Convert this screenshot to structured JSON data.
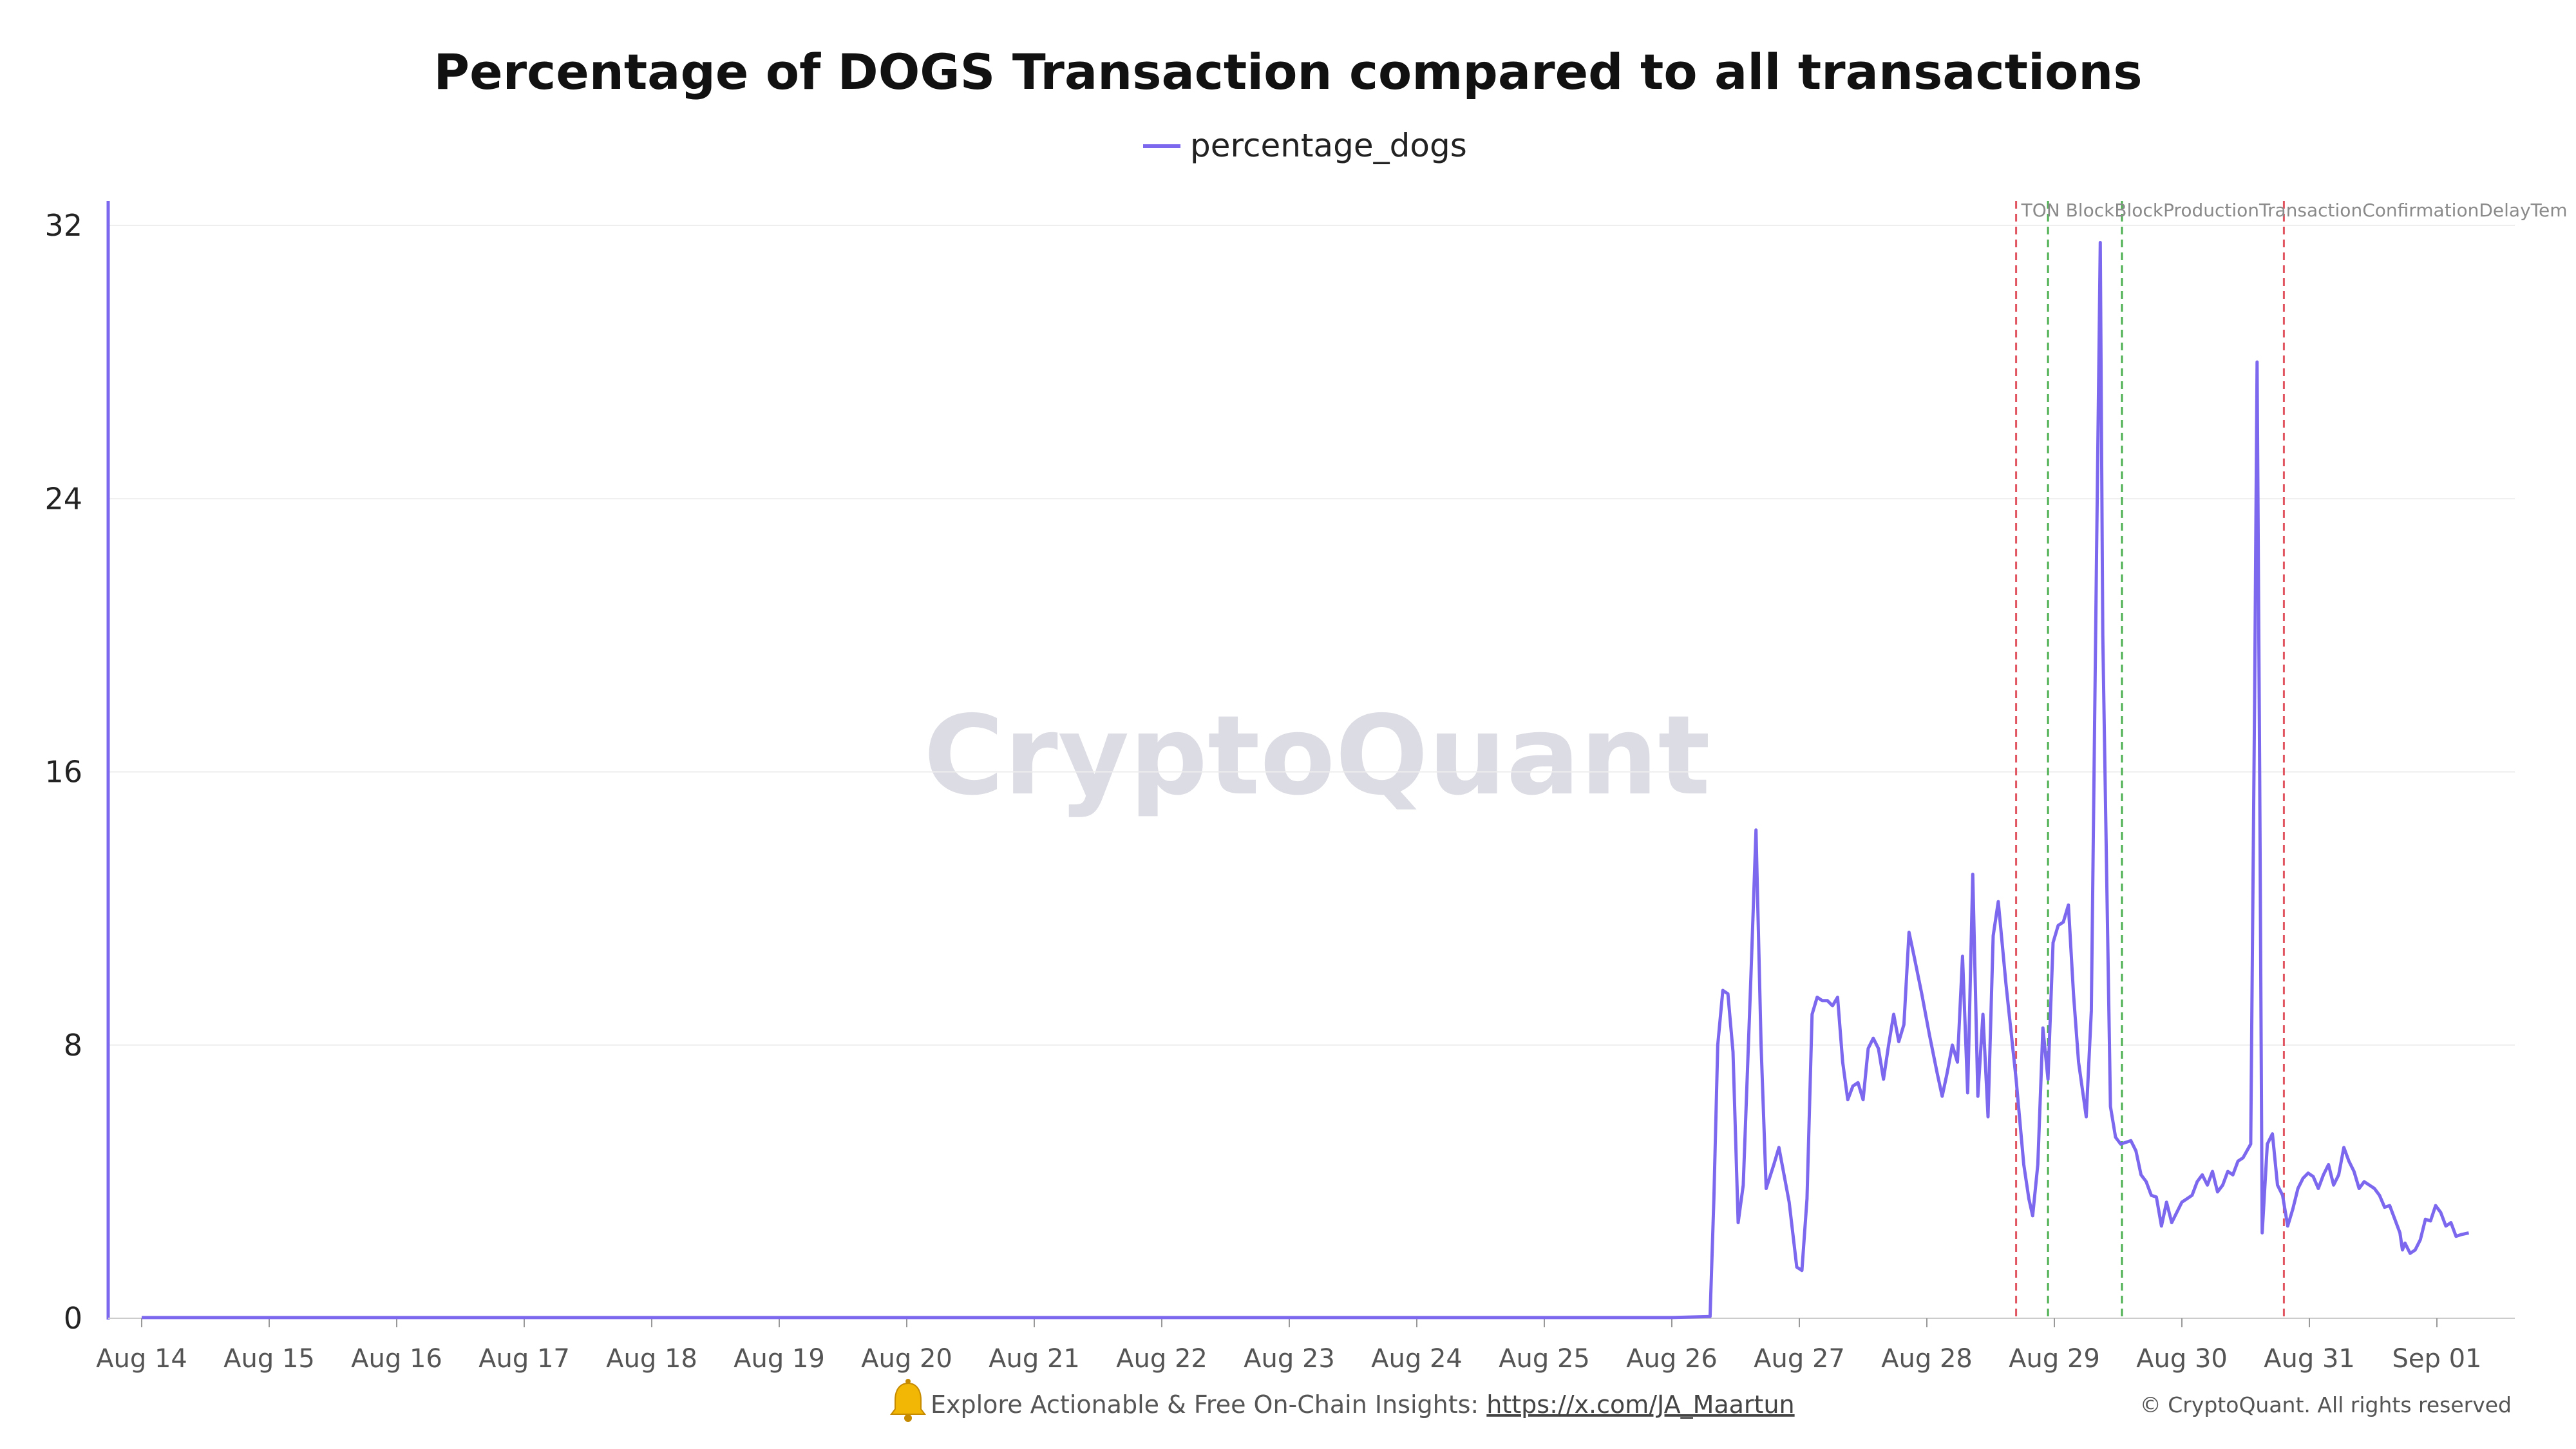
{
  "chart_data": {
    "type": "line",
    "title": "Percentage of DOGS Transaction compared to all transactions",
    "xlabel": "",
    "ylabel": "",
    "ylim": [
      0,
      32
    ],
    "yticks": [
      "0",
      "8",
      "16",
      "24",
      "32"
    ],
    "xticks": [
      "Aug 14",
      "Aug 15",
      "Aug 16",
      "Aug 17",
      "Aug 18",
      "Aug 19",
      "Aug 20",
      "Aug 21",
      "Aug 22",
      "Aug 23",
      "Aug 24",
      "Aug 25",
      "Aug 26",
      "Aug 27",
      "Aug 28",
      "Aug 29",
      "Aug 30",
      "Aug 31",
      "Sep 01"
    ],
    "xlim_days": [
      13.85,
      32.55
    ],
    "grid": true,
    "legend": "top-center",
    "colors": {
      "series": "#7b68ee",
      "event_red": "#e05560",
      "event_green": "#4caf50",
      "grid": "#eeeeee"
    },
    "series": [
      {
        "name": "percentage_dogs",
        "points": [
          [
            14.0,
            0.02
          ],
          [
            15.0,
            0.02
          ],
          [
            16.0,
            0.02
          ],
          [
            17.0,
            0.02
          ],
          [
            18.0,
            0.02
          ],
          [
            19.0,
            0.02
          ],
          [
            20.0,
            0.02
          ],
          [
            21.0,
            0.02
          ],
          [
            22.0,
            0.02
          ],
          [
            23.0,
            0.02
          ],
          [
            24.0,
            0.02
          ],
          [
            25.0,
            0.02
          ],
          [
            26.0,
            0.02
          ],
          [
            26.3,
            0.05
          ],
          [
            26.33,
            3.5
          ],
          [
            26.36,
            8.0
          ],
          [
            26.4,
            9.6
          ],
          [
            26.44,
            9.5
          ],
          [
            26.48,
            7.8
          ],
          [
            26.52,
            2.8
          ],
          [
            26.56,
            3.9
          ],
          [
            26.62,
            10.0
          ],
          [
            26.66,
            14.3
          ],
          [
            26.7,
            8.0
          ],
          [
            26.74,
            3.8
          ],
          [
            26.8,
            4.5
          ],
          [
            26.84,
            5.0
          ],
          [
            26.92,
            3.4
          ],
          [
            26.98,
            1.5
          ],
          [
            27.02,
            1.4
          ],
          [
            27.06,
            3.5
          ],
          [
            27.1,
            8.9
          ],
          [
            27.14,
            9.4
          ],
          [
            27.18,
            9.3
          ],
          [
            27.22,
            9.3
          ],
          [
            27.26,
            9.15
          ],
          [
            27.3,
            9.4
          ],
          [
            27.34,
            7.5
          ],
          [
            27.38,
            6.4
          ],
          [
            27.42,
            6.8
          ],
          [
            27.46,
            6.9
          ],
          [
            27.5,
            6.4
          ],
          [
            27.54,
            7.9
          ],
          [
            27.58,
            8.2
          ],
          [
            27.62,
            7.9
          ],
          [
            27.66,
            7.0
          ],
          [
            27.7,
            8.0
          ],
          [
            27.74,
            8.9
          ],
          [
            27.78,
            8.1
          ],
          [
            27.82,
            8.6
          ],
          [
            27.86,
            11.3
          ],
          [
            27.9,
            10.6
          ],
          [
            27.96,
            9.5
          ],
          [
            28.02,
            8.3
          ],
          [
            28.08,
            7.2
          ],
          [
            28.12,
            6.5
          ],
          [
            28.16,
            7.2
          ],
          [
            28.2,
            8.0
          ],
          [
            28.24,
            7.5
          ],
          [
            28.28,
            10.6
          ],
          [
            28.32,
            6.6
          ],
          [
            28.36,
            13.0
          ],
          [
            28.4,
            6.5
          ],
          [
            28.44,
            8.9
          ],
          [
            28.48,
            5.9
          ],
          [
            28.52,
            11.2
          ],
          [
            28.56,
            12.2
          ],
          [
            28.62,
            9.8
          ],
          [
            28.7,
            7.0
          ],
          [
            28.76,
            4.5
          ],
          [
            28.8,
            3.5
          ],
          [
            28.83,
            3.0
          ],
          [
            28.87,
            4.5
          ],
          [
            28.91,
            8.5
          ],
          [
            28.95,
            7.0
          ],
          [
            28.99,
            11.0
          ],
          [
            29.03,
            11.5
          ],
          [
            29.07,
            11.6
          ],
          [
            29.11,
            12.1
          ],
          [
            29.15,
            9.5
          ],
          [
            29.19,
            7.5
          ],
          [
            29.25,
            5.9
          ],
          [
            29.29,
            9.0
          ],
          [
            29.33,
            22.0
          ],
          [
            29.36,
            31.5
          ],
          [
            29.38,
            20.0
          ],
          [
            29.41,
            13.0
          ],
          [
            29.44,
            6.2
          ],
          [
            29.48,
            5.3
          ],
          [
            29.52,
            5.1
          ],
          [
            29.6,
            5.2
          ],
          [
            29.64,
            4.9
          ],
          [
            29.68,
            4.2
          ],
          [
            29.72,
            4.0
          ],
          [
            29.76,
            3.6
          ],
          [
            29.8,
            3.55
          ],
          [
            29.84,
            2.7
          ],
          [
            29.88,
            3.4
          ],
          [
            29.92,
            2.8
          ],
          [
            29.96,
            3.1
          ],
          [
            30.0,
            3.4
          ],
          [
            30.04,
            3.5
          ],
          [
            30.08,
            3.6
          ],
          [
            30.12,
            4.0
          ],
          [
            30.16,
            4.2
          ],
          [
            30.2,
            3.9
          ],
          [
            30.24,
            4.3
          ],
          [
            30.28,
            3.7
          ],
          [
            30.32,
            3.9
          ],
          [
            30.36,
            4.3
          ],
          [
            30.4,
            4.2
          ],
          [
            30.44,
            4.6
          ],
          [
            30.48,
            4.7
          ],
          [
            30.54,
            5.1
          ],
          [
            30.57,
            18.0
          ],
          [
            30.59,
            28.0
          ],
          [
            30.61,
            16.0
          ],
          [
            30.63,
            2.5
          ],
          [
            30.67,
            5.1
          ],
          [
            30.71,
            5.4
          ],
          [
            30.75,
            3.9
          ],
          [
            30.79,
            3.6
          ],
          [
            30.83,
            2.7
          ],
          [
            30.87,
            3.2
          ],
          [
            30.91,
            3.8
          ],
          [
            30.95,
            4.1
          ],
          [
            30.99,
            4.25
          ],
          [
            31.03,
            4.15
          ],
          [
            31.07,
            3.8
          ],
          [
            31.11,
            4.2
          ],
          [
            31.15,
            4.5
          ],
          [
            31.19,
            3.9
          ],
          [
            31.23,
            4.2
          ],
          [
            31.27,
            5.0
          ],
          [
            31.31,
            4.6
          ],
          [
            31.35,
            4.3
          ],
          [
            31.39,
            3.8
          ],
          [
            31.43,
            4.0
          ],
          [
            31.47,
            3.9
          ],
          [
            31.51,
            3.8
          ],
          [
            31.55,
            3.6
          ],
          [
            31.59,
            3.25
          ],
          [
            31.63,
            3.3
          ],
          [
            31.67,
            2.9
          ],
          [
            31.71,
            2.5
          ],
          [
            31.73,
            2.0
          ],
          [
            31.75,
            2.2
          ],
          [
            31.79,
            1.9
          ],
          [
            31.83,
            2.0
          ],
          [
            31.87,
            2.3
          ],
          [
            31.91,
            2.9
          ],
          [
            31.95,
            2.85
          ],
          [
            31.99,
            3.3
          ],
          [
            32.03,
            3.1
          ],
          [
            32.07,
            2.7
          ],
          [
            32.11,
            2.8
          ],
          [
            32.15,
            2.4
          ],
          [
            32.19,
            2.45
          ],
          [
            32.25,
            2.5
          ]
        ]
      }
    ],
    "events": [
      {
        "day": 28.7,
        "color": "red",
        "label": "TON Block..."
      },
      {
        "day": 28.95,
        "color": "green",
        "label": "Block Production..."
      },
      {
        "day": 29.53,
        "color": "green",
        "label": "Block Production Transaction Confirmation Delay Temporary Lo..."
      },
      {
        "day": 30.8,
        "color": "red",
        "label": "TON Block... Delay Temporary Lo..."
      }
    ],
    "event_label_text": "TON BlockBlockProductionTransactionConfirmationDelayTemporaryLo..."
  },
  "watermark": "CryptoQuant",
  "footer": {
    "text": "Explore Actionable & Free On-Chain Insights: ",
    "link": "https://x.com/JA_Maartun",
    "copyright": "© CryptoQuant. All rights reserved"
  }
}
